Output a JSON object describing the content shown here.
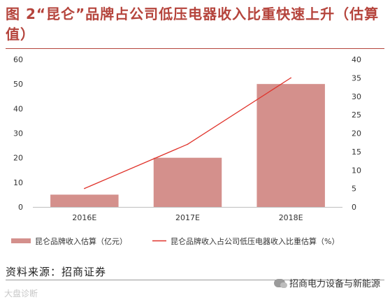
{
  "header": {
    "title": "图 2“昆仑”品牌占公司低压电器收入比重快速上升（估算值）"
  },
  "footer": {
    "source": "资料来源：招商证券",
    "watermark_left": "大盘诊断",
    "watermark_right": "招商电力设备与新能源"
  },
  "colors": {
    "bar": "#d4908c",
    "line": "#e0332b",
    "axis": "#bfbfbf",
    "title": "#b5443c"
  },
  "chart_data": {
    "type": "bar",
    "categories": [
      "2016E",
      "2017E",
      "2018E"
    ],
    "series": [
      {
        "name": "昆仑品牌收入估算（亿元）",
        "type": "bar",
        "axis": "left",
        "values": [
          5,
          20,
          50
        ]
      },
      {
        "name": "昆仑品牌收入占公司低压电器收入比重估算（%）",
        "type": "line",
        "axis": "right",
        "values": [
          5,
          17,
          35
        ]
      }
    ],
    "y_left": {
      "range": [
        0,
        60
      ],
      "ticks": [
        "0",
        "10",
        "20",
        "30",
        "40",
        "50",
        "60"
      ]
    },
    "y_right": {
      "range": [
        0,
        40
      ],
      "ticks": [
        "0",
        "5",
        "10",
        "15",
        "20",
        "25",
        "30",
        "35",
        "40"
      ]
    },
    "grid": false,
    "legend_position": "bottom"
  }
}
